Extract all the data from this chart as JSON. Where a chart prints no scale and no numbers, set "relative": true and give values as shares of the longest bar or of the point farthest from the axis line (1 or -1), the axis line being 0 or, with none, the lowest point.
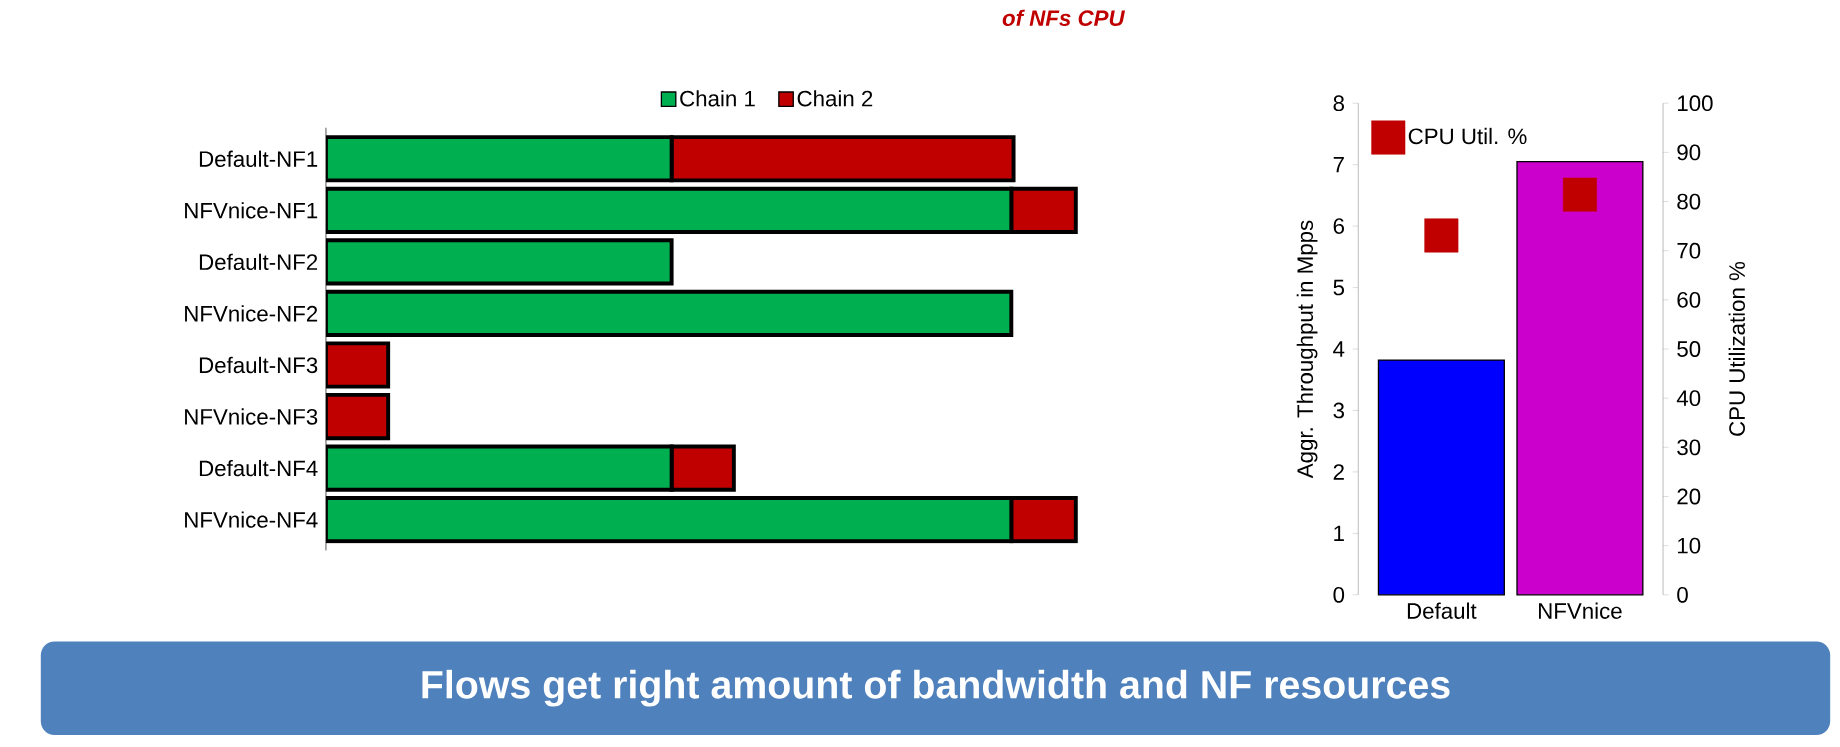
{
  "chart_data": [
    {
      "type": "bar",
      "orientation": "horizontal",
      "stacked": true,
      "relative": true,
      "legend": "top",
      "categories": [
        "Default-NF1",
        "NFVnice-NF1",
        "Default-NF2",
        "NFVnice-NF2",
        "Default-NF3",
        "NFVnice-NF3",
        "Default-NF4",
        "NFVnice-NF4"
      ],
      "series": [
        {
          "name": "Chain 1",
          "color": "#00b050",
          "values": [
            0.461,
            0.914,
            0.461,
            0.914,
            null,
            null,
            0.461,
            0.914
          ]
        },
        {
          "name": "Chain 2",
          "color": "#c00000",
          "values": [
            0.456,
            0.086,
            null,
            null,
            0.083,
            0.083,
            0.083,
            0.086
          ]
        }
      ],
      "annotations": [
        "of NFs CPU",
        "Flows get right amount of bandwidth and NF resources"
      ]
    },
    {
      "type": "bar",
      "categories": [
        "Default",
        "NFVnice"
      ],
      "ylabel": "Aggr. Throughput in Mpps",
      "y2label": "CPU Utilization %",
      "legend": "top left",
      "series": [
        {
          "type": "bar",
          "colors": [
            "#0000ff",
            "#cc00cc"
          ],
          "values": [
            3.82,
            7.05
          ]
        },
        {
          "type": "scatter",
          "name": "CPU Util. %",
          "axis": "y2",
          "color": "#c00000",
          "marker": "square",
          "values": [
            73.1,
            81.4
          ]
        }
      ],
      "ylim": [
        0,
        8
      ],
      "yticks": [
        0,
        1,
        2,
        3,
        4,
        5,
        6,
        7,
        8
      ],
      "y2lim": [
        0,
        100
      ],
      "y2ticks": [
        0,
        10,
        20,
        30,
        40,
        50,
        60,
        70,
        80,
        90,
        100
      ]
    }
  ]
}
